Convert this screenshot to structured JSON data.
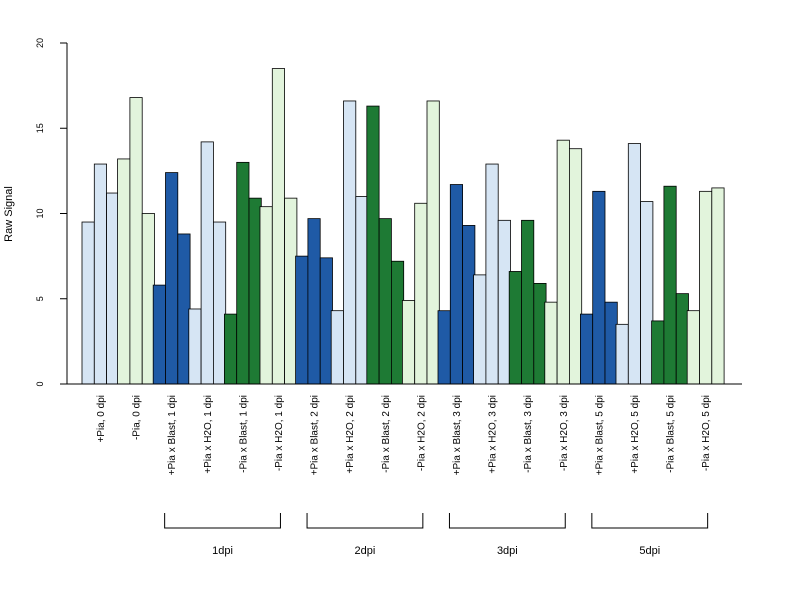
{
  "chart_data": {
    "type": "bar",
    "title": "",
    "xlabel": "",
    "ylabel": "Raw Signal",
    "ylim": [
      0,
      20
    ],
    "yticks": [
      0,
      5,
      10,
      15,
      20
    ],
    "grid": false,
    "legend": "none",
    "categories": [
      "+Pia, 0 dpi",
      "-Pia, 0 dpi",
      "+Pia x Blast, 1 dpi",
      "+Pia x H2O, 1 dpi",
      "-Pia x Blast, 1 dpi",
      "-Pia x H2O, 1 dpi",
      "+Pia x Blast, 2 dpi",
      "+Pia x H2O, 2 dpi",
      "-Pia x Blast, 2 dpi",
      "-Pia x H2O, 2 dpi",
      "+Pia x Blast, 3 dpi",
      "+Pia x H2O, 3 dpi",
      "-Pia x Blast, 3 dpi",
      "-Pia x H2O, 3 dpi",
      "+Pia x Blast, 5 dpi",
      "+Pia x H2O, 5 dpi",
      "-Pia x Blast, 5 dpi",
      "-Pia x H2O, 5 dpi"
    ],
    "group_colors": [
      "#d6e5f4",
      "#e2f4dc",
      "#1f5aa6",
      "#d6e5f4",
      "#1e7a34",
      "#e2f4dc",
      "#1f5aa6",
      "#d6e5f4",
      "#1e7a34",
      "#e2f4dc",
      "#1f5aa6",
      "#d6e5f4",
      "#1e7a34",
      "#e2f4dc",
      "#1f5aa6",
      "#d6e5f4",
      "#1e7a34",
      "#e2f4dc"
    ],
    "values": [
      [
        9.5,
        12.9,
        11.2
      ],
      [
        13.2,
        16.8,
        10.0
      ],
      [
        5.8,
        12.4,
        8.8
      ],
      [
        4.4,
        14.2,
        9.5
      ],
      [
        4.1,
        13.0,
        10.9
      ],
      [
        10.4,
        18.5,
        10.9
      ],
      [
        7.5,
        9.7,
        7.4
      ],
      [
        4.3,
        16.6,
        11.0
      ],
      [
        16.3,
        9.7,
        7.2
      ],
      [
        4.9,
        10.6,
        16.6
      ],
      [
        4.3,
        11.7,
        9.3
      ],
      [
        6.4,
        12.9,
        9.6
      ],
      [
        6.6,
        9.6,
        5.9
      ],
      [
        4.8,
        14.3,
        13.8
      ],
      [
        4.1,
        11.3,
        4.8
      ],
      [
        3.5,
        14.1,
        10.7
      ],
      [
        3.7,
        11.6,
        5.3
      ],
      [
        4.3,
        11.3,
        11.5
      ]
    ],
    "brackets": [
      {
        "label": "1dpi",
        "from": 2,
        "to": 5
      },
      {
        "label": "2dpi",
        "from": 6,
        "to": 9
      },
      {
        "label": "3dpi",
        "from": 10,
        "to": 13
      },
      {
        "label": "5dpi",
        "from": 14,
        "to": 17
      }
    ]
  }
}
